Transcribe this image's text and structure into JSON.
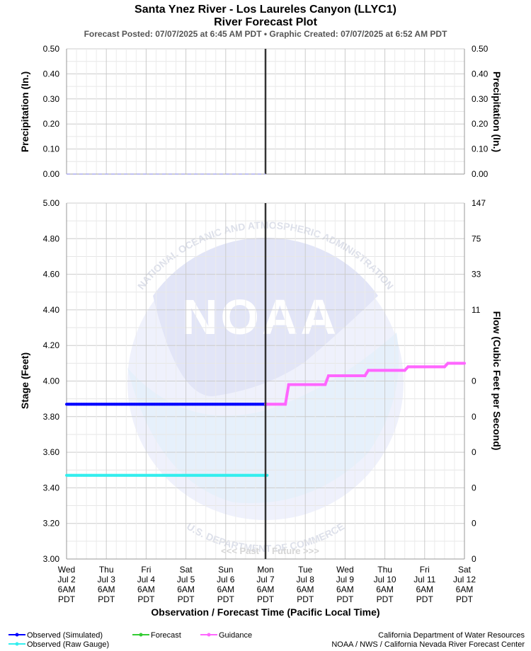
{
  "header": {
    "title": "Santa Ynez River - Los Laureles Canyon (LLYC1)",
    "subtitle": "River Forecast Plot",
    "posted": "Forecast Posted: 07/07/2025 at 6:45 AM PDT  •  Graphic Created: 07/07/2025 at 6:52 AM PDT"
  },
  "colors": {
    "observed_simulated": "#0000ff",
    "observed_raw": "#33eeee",
    "forecast": "#33cc33",
    "guidance": "#ff66ff",
    "precip": "#aaaaee",
    "now_line": "#333333",
    "grid": "#cccccc"
  },
  "chart_data": [
    {
      "type": "line",
      "name": "precipitation",
      "ylabel_left": "Precipitation (In.)",
      "ylabel_right": "Precipitation (In.)",
      "ylim": [
        0,
        0.5
      ],
      "y_ticks": [
        "0.00",
        "0.10",
        "0.20",
        "0.30",
        "0.40",
        "0.50"
      ],
      "y_tick_values": [
        0,
        0.1,
        0.2,
        0.3,
        0.4,
        0.5
      ],
      "series": [
        {
          "key": "precip",
          "x": [
            0,
            120
          ],
          "values": [
            0,
            0
          ]
        }
      ]
    },
    {
      "type": "line",
      "name": "stage-flow",
      "ylabel_left": "Stage (Feet)",
      "ylabel_right": "Flow (Cubic Feet per Second)",
      "xlabel": "Observation / Forecast Time (Pacific Local Time)",
      "ylim": [
        3.0,
        5.0
      ],
      "y_ticks": [
        "3.00",
        "3.20",
        "3.40",
        "3.60",
        "3.80",
        "4.00",
        "4.20",
        "4.40",
        "4.60",
        "4.80",
        "5.00"
      ],
      "y_tick_values": [
        3.0,
        3.2,
        3.4,
        3.6,
        3.8,
        4.0,
        4.2,
        4.4,
        4.6,
        4.8,
        5.0
      ],
      "flow_ticks": [
        "0",
        "0",
        "0",
        "0",
        "0",
        "0",
        "11",
        "33",
        "75",
        "147"
      ],
      "flow_tick_stages": [
        3.0,
        3.2,
        3.4,
        3.6,
        3.8,
        4.0,
        4.4,
        4.6,
        4.8,
        5.0
      ],
      "x_unit": "hours after Wed Jul 2 6AM PDT",
      "now_x": 120,
      "past_label": "<<< Past",
      "future_label": "Future >>>",
      "series": [
        {
          "name": "Observed (Simulated)",
          "key": "observed_simulated",
          "marker": true,
          "x": [
            0,
            121
          ],
          "values": [
            3.87,
            3.87
          ]
        },
        {
          "name": "Observed (Raw Gauge)",
          "key": "observed_raw",
          "marker": true,
          "x": [
            0,
            121
          ],
          "values": [
            3.47,
            3.47
          ]
        },
        {
          "name": "Guidance",
          "key": "guidance",
          "marker": true,
          "x": [
            120,
            132,
            134,
            156,
            158,
            180,
            182,
            204,
            206,
            228,
            230,
            240
          ],
          "values": [
            3.87,
            3.87,
            3.98,
            3.98,
            4.03,
            4.03,
            4.06,
            4.06,
            4.08,
            4.08,
            4.1,
            4.1
          ]
        }
      ]
    }
  ],
  "x_axis": {
    "range": [
      0,
      240
    ],
    "ticks": [
      {
        "x": 0,
        "day": "Wed",
        "date": "Jul 2",
        "time": "6AM",
        "tz": "PDT"
      },
      {
        "x": 24,
        "day": "Thu",
        "date": "Jul 3",
        "time": "6AM",
        "tz": "PDT"
      },
      {
        "x": 48,
        "day": "Fri",
        "date": "Jul 4",
        "time": "6AM",
        "tz": "PDT"
      },
      {
        "x": 72,
        "day": "Sat",
        "date": "Jul 5",
        "time": "6AM",
        "tz": "PDT"
      },
      {
        "x": 96,
        "day": "Sun",
        "date": "Jul 6",
        "time": "6AM",
        "tz": "PDT"
      },
      {
        "x": 120,
        "day": "Mon",
        "date": "Jul 7",
        "time": "6AM",
        "tz": "PDT"
      },
      {
        "x": 144,
        "day": "Tue",
        "date": "Jul 8",
        "time": "6AM",
        "tz": "PDT"
      },
      {
        "x": 168,
        "day": "Wed",
        "date": "Jul 9",
        "time": "6AM",
        "tz": "PDT"
      },
      {
        "x": 192,
        "day": "Thu",
        "date": "Jul 10",
        "time": "6AM",
        "tz": "PDT"
      },
      {
        "x": 216,
        "day": "Fri",
        "date": "Jul 11",
        "time": "6AM",
        "tz": "PDT"
      },
      {
        "x": 240,
        "day": "Sat",
        "date": "Jul 12",
        "time": "6AM",
        "tz": "PDT"
      }
    ]
  },
  "legend": [
    {
      "label": "Observed (Simulated)",
      "key": "observed_simulated"
    },
    {
      "label": "Observed (Raw Gauge)",
      "key": "observed_raw"
    },
    {
      "label": "Forecast",
      "key": "forecast"
    },
    {
      "label": "Guidance",
      "key": "guidance"
    }
  ],
  "credits": {
    "line1": "California Department of Water Resources",
    "line2": "NOAA / NWS / California Nevada River Forecast Center"
  },
  "watermark": {
    "logo": "NOAA",
    "top_arc": "NATIONAL OCEANIC AND ATMOSPHERIC ADMINISTRATION",
    "bottom_arc": "U.S. DEPARTMENT OF COMMERCE"
  }
}
